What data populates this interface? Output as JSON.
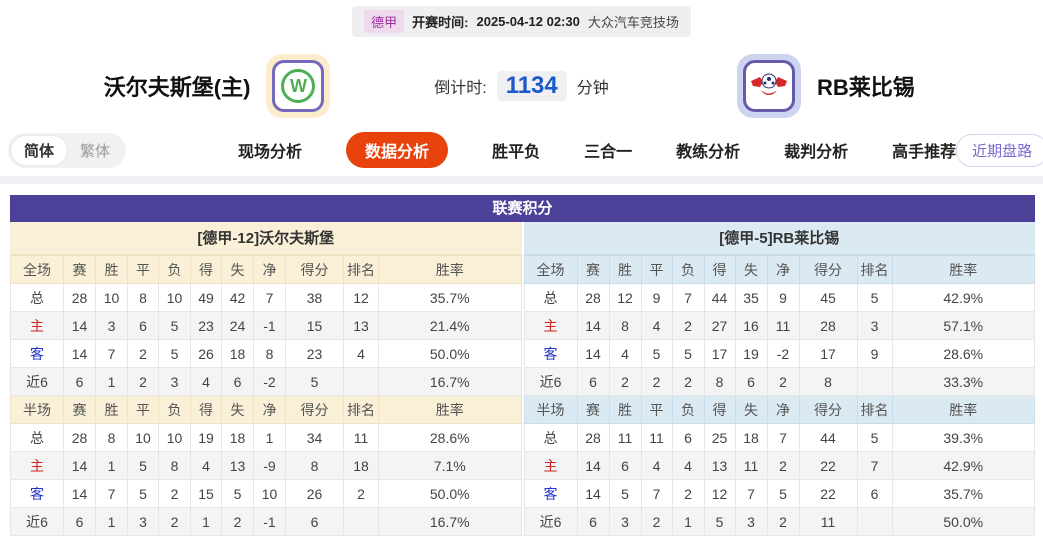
{
  "match_bar": {
    "league": "德甲",
    "kickoff_label": "开赛时间:",
    "kickoff_time": "2025-04-12 02:30",
    "venue": "大众汽车竞技场"
  },
  "header": {
    "home_team": {
      "name": "沃尔夫斯堡(主)",
      "logo": "wolfsburg-green-w",
      "logo_letter": "W"
    },
    "away_team": {
      "name": "RB莱比锡",
      "logo": "rb-leipzig-bulls"
    },
    "countdown": {
      "label": "倒计时:",
      "value": "1134",
      "unit": "分钟"
    }
  },
  "nav": {
    "lang": [
      {
        "label": "简体",
        "active": true
      },
      {
        "label": "繁体",
        "active": false
      }
    ],
    "tabs": [
      {
        "label": "现场分析",
        "active": false
      },
      {
        "label": "数据分析",
        "active": true
      },
      {
        "label": "胜平负",
        "active": false
      },
      {
        "label": "三合一",
        "active": false
      },
      {
        "label": "教练分析",
        "active": false
      },
      {
        "label": "裁判分析",
        "active": false
      },
      {
        "label": "高手推荐",
        "active": false
      }
    ],
    "recent_button": "近期盘路"
  },
  "table": {
    "title": "联赛积分",
    "columns_full": [
      "全场",
      "赛",
      "胜",
      "平",
      "负",
      "得",
      "失",
      "净",
      "得分",
      "排名",
      "胜率"
    ],
    "columns_half": [
      "半场",
      "赛",
      "胜",
      "平",
      "负",
      "得",
      "失",
      "净",
      "得分",
      "排名",
      "胜率"
    ],
    "teams": [
      {
        "title": "[德甲-12]沃尔夫斯堡",
        "theme": "cream",
        "full_rows": [
          {
            "label": "总",
            "cells": [
              "28",
              "10",
              "8",
              "10",
              "49",
              "42",
              "7",
              "38",
              "12",
              "35.7%"
            ]
          },
          {
            "label": "主",
            "cells": [
              "14",
              "3",
              "6",
              "5",
              "23",
              "24",
              "-1",
              "15",
              "13",
              "21.4%"
            ]
          },
          {
            "label": "客",
            "cells": [
              "14",
              "7",
              "2",
              "5",
              "26",
              "18",
              "8",
              "23",
              "4",
              "50.0%"
            ]
          },
          {
            "label": "近6",
            "cells": [
              "6",
              "1",
              "2",
              "3",
              "4",
              "6",
              "-2",
              "5",
              "",
              "16.7%"
            ]
          }
        ],
        "half_rows": [
          {
            "label": "总",
            "cells": [
              "28",
              "8",
              "10",
              "10",
              "19",
              "18",
              "1",
              "34",
              "11",
              "28.6%"
            ]
          },
          {
            "label": "主",
            "cells": [
              "14",
              "1",
              "5",
              "8",
              "4",
              "13",
              "-9",
              "8",
              "18",
              "7.1%"
            ]
          },
          {
            "label": "客",
            "cells": [
              "14",
              "7",
              "5",
              "2",
              "15",
              "5",
              "10",
              "26",
              "2",
              "50.0%"
            ]
          },
          {
            "label": "近6",
            "cells": [
              "6",
              "1",
              "3",
              "2",
              "1",
              "2",
              "-1",
              "6",
              "",
              "16.7%"
            ]
          }
        ]
      },
      {
        "title": "[德甲-5]RB莱比锡",
        "theme": "blue",
        "full_rows": [
          {
            "label": "总",
            "cells": [
              "28",
              "12",
              "9",
              "7",
              "44",
              "35",
              "9",
              "45",
              "5",
              "42.9%"
            ]
          },
          {
            "label": "主",
            "cells": [
              "14",
              "8",
              "4",
              "2",
              "27",
              "16",
              "11",
              "28",
              "3",
              "57.1%"
            ]
          },
          {
            "label": "客",
            "cells": [
              "14",
              "4",
              "5",
              "5",
              "17",
              "19",
              "-2",
              "17",
              "9",
              "28.6%"
            ]
          },
          {
            "label": "近6",
            "cells": [
              "6",
              "2",
              "2",
              "2",
              "8",
              "6",
              "2",
              "8",
              "",
              "33.3%"
            ]
          }
        ],
        "half_rows": [
          {
            "label": "总",
            "cells": [
              "28",
              "11",
              "11",
              "6",
              "25",
              "18",
              "7",
              "44",
              "5",
              "39.3%"
            ]
          },
          {
            "label": "主",
            "cells": [
              "14",
              "6",
              "4",
              "4",
              "13",
              "11",
              "2",
              "22",
              "7",
              "42.9%"
            ]
          },
          {
            "label": "客",
            "cells": [
              "14",
              "5",
              "7",
              "2",
              "12",
              "7",
              "5",
              "22",
              "6",
              "35.7%"
            ]
          },
          {
            "label": "近6",
            "cells": [
              "6",
              "3",
              "2",
              "1",
              "5",
              "3",
              "2",
              "11",
              "",
              "50.0%"
            ]
          }
        ]
      }
    ]
  },
  "colors": {
    "title_bar_purple": "#4c4199",
    "active_tab_orange": "#e8430c",
    "cream_header": "#faf0d8",
    "blue_header": "#dbe9f2",
    "home_row_red": "#cc2222",
    "away_row_blue": "#2233cc",
    "league_chip_magenta": "#a0309e",
    "countdown_blue": "#1b59c8",
    "recent_btn_purple": "#7b6ad0"
  }
}
